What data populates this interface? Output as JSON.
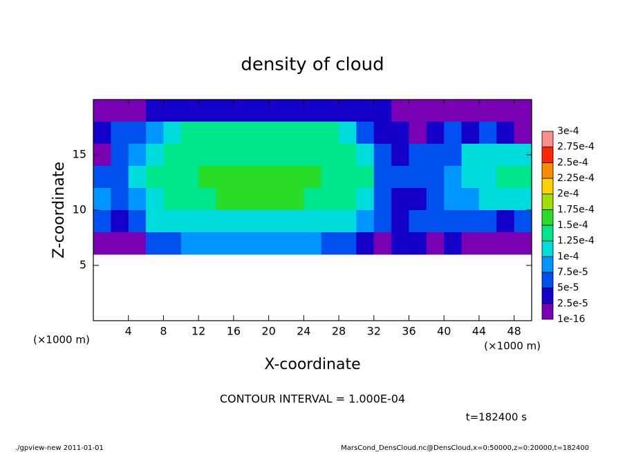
{
  "chart_data": {
    "type": "heatmap",
    "title": "density of cloud",
    "x_label": "X-coordinate",
    "y_label": "Z-coordinate",
    "x_unit_left": "(×1000 m)",
    "x_unit_right": "(×1000 m)",
    "contour_note": "CONTOUR INTERVAL = 1.000E-04",
    "time_note": "t=182400 s",
    "footer_left": "./gpview-new  2011-01-01",
    "footer_right": "MarsCond_DensCloud.nc@DensCloud,x=0:50000,z=0:20000,t=182400",
    "xlim": [
      0,
      50
    ],
    "ylim": [
      0,
      20
    ],
    "xticks": [
      4,
      8,
      12,
      16,
      20,
      24,
      28,
      32,
      36,
      40,
      44,
      48
    ],
    "yticks": [
      5,
      10,
      15
    ],
    "x": [
      1,
      3,
      5,
      7,
      9,
      11,
      13,
      15,
      17,
      19,
      21,
      23,
      25,
      27,
      29,
      31,
      33,
      35,
      37,
      39,
      41,
      43,
      45,
      47,
      49
    ],
    "y": [
      19,
      17,
      15,
      13,
      11,
      9,
      7,
      5,
      3,
      1
    ],
    "values": [
      [
        1e-05,
        1e-05,
        2e-05,
        3e-05,
        4e-05,
        4e-05,
        4e-05,
        4e-05,
        4e-05,
        4e-05,
        4e-05,
        4e-05,
        4e-05,
        4e-05,
        4e-05,
        4e-05,
        3e-05,
        1e-05,
        1e-05,
        1e-05,
        1e-05,
        1e-05,
        1e-05,
        1e-05,
        1e-05
      ],
      [
        3e-05,
        5e-05,
        6e-05,
        9e-05,
        0.00012,
        0.00013,
        0.000135,
        0.000135,
        0.000135,
        0.000135,
        0.000135,
        0.000135,
        0.000135,
        0.00013,
        0.00011,
        7e-05,
        4e-05,
        3e-05,
        2e-05,
        3e-05,
        6e-05,
        4e-05,
        5e-05,
        4e-05,
        2e-05
      ],
      [
        2e-05,
        5e-05,
        8e-05,
        0.000115,
        0.00013,
        0.00014,
        0.000145,
        0.000145,
        0.000145,
        0.000145,
        0.000145,
        0.000145,
        0.000145,
        0.00014,
        0.00013,
        0.0001,
        6e-05,
        4e-05,
        5e-05,
        6e-05,
        7e-05,
        0.0001,
        0.00011,
        0.00011,
        0.00012
      ],
      [
        5e-05,
        7e-05,
        0.0001,
        0.000125,
        0.00014,
        0.000145,
        0.00015,
        0.00015,
        0.00015,
        0.00015,
        0.00015,
        0.00015,
        0.00015,
        0.000145,
        0.00014,
        0.000125,
        7e-05,
        5e-05,
        5e-05,
        6e-05,
        8e-05,
        0.00011,
        0.00012,
        0.00013,
        0.00013
      ],
      [
        8e-05,
        7e-05,
        9e-05,
        0.00012,
        0.000135,
        0.000145,
        0.000145,
        0.00015,
        0.00015,
        0.00015,
        0.00015,
        0.00015,
        0.000145,
        0.000145,
        0.00014,
        0.00012,
        6e-05,
        4e-05,
        4e-05,
        6e-05,
        8e-05,
        9e-05,
        0.0001,
        0.00011,
        0.00011
      ],
      [
        5e-05,
        4e-05,
        6e-05,
        0.0001,
        0.000115,
        0.00012,
        0.00012,
        0.00012,
        0.00012,
        0.00012,
        0.00012,
        0.00012,
        0.00012,
        0.000115,
        0.00011,
        9e-05,
        5e-05,
        4e-05,
        5e-05,
        6e-05,
        5e-05,
        6e-05,
        5e-05,
        4e-05,
        5e-05
      ],
      [
        1e-05,
        1e-05,
        2e-05,
        5e-05,
        7e-05,
        8e-05,
        8e-05,
        8e-05,
        8e-05,
        8e-05,
        8e-05,
        8e-05,
        8e-05,
        7e-05,
        6e-05,
        4e-05,
        2e-05,
        3e-05,
        3e-05,
        2e-05,
        3e-05,
        2e-05,
        2e-05,
        1e-05,
        1e-05
      ],
      [
        null,
        null,
        null,
        null,
        null,
        null,
        null,
        null,
        null,
        null,
        null,
        null,
        null,
        null,
        null,
        null,
        null,
        null,
        null,
        null,
        null,
        null,
        null,
        null,
        null
      ],
      [
        null,
        null,
        null,
        null,
        null,
        null,
        null,
        null,
        null,
        null,
        null,
        null,
        null,
        null,
        null,
        null,
        null,
        null,
        null,
        null,
        null,
        null,
        null,
        null,
        null
      ],
      [
        null,
        null,
        null,
        null,
        null,
        null,
        null,
        null,
        null,
        null,
        null,
        null,
        null,
        null,
        null,
        null,
        null,
        null,
        null,
        null,
        null,
        null,
        null,
        null,
        null
      ]
    ],
    "levels": [
      {
        "value": 1e-16,
        "label": "1e-16"
      },
      {
        "value": 2.5e-05,
        "label": "2.5e-5"
      },
      {
        "value": 5e-05,
        "label": "5e-5"
      },
      {
        "value": 7.5e-05,
        "label": "7.5e-5"
      },
      {
        "value": 0.0001,
        "label": "1e-4"
      },
      {
        "value": 0.000125,
        "label": "1.25e-4"
      },
      {
        "value": 0.00015,
        "label": "1.5e-4"
      },
      {
        "value": 0.000175,
        "label": "1.75e-4"
      },
      {
        "value": 0.0002,
        "label": "2e-4"
      },
      {
        "value": 0.000225,
        "label": "2.25e-4"
      },
      {
        "value": 0.00025,
        "label": "2.5e-4"
      },
      {
        "value": 0.000275,
        "label": "2.75e-4"
      },
      {
        "value": 0.0003,
        "label": "3e-4"
      }
    ],
    "colors": [
      "#7a00b4",
      "#1400c8",
      "#0050f0",
      "#0096ff",
      "#00dcdc",
      "#00e68c",
      "#28dc28",
      "#a0e000",
      "#ffd200",
      "#ff8c00",
      "#ff2800",
      "#ff8c8c"
    ]
  }
}
